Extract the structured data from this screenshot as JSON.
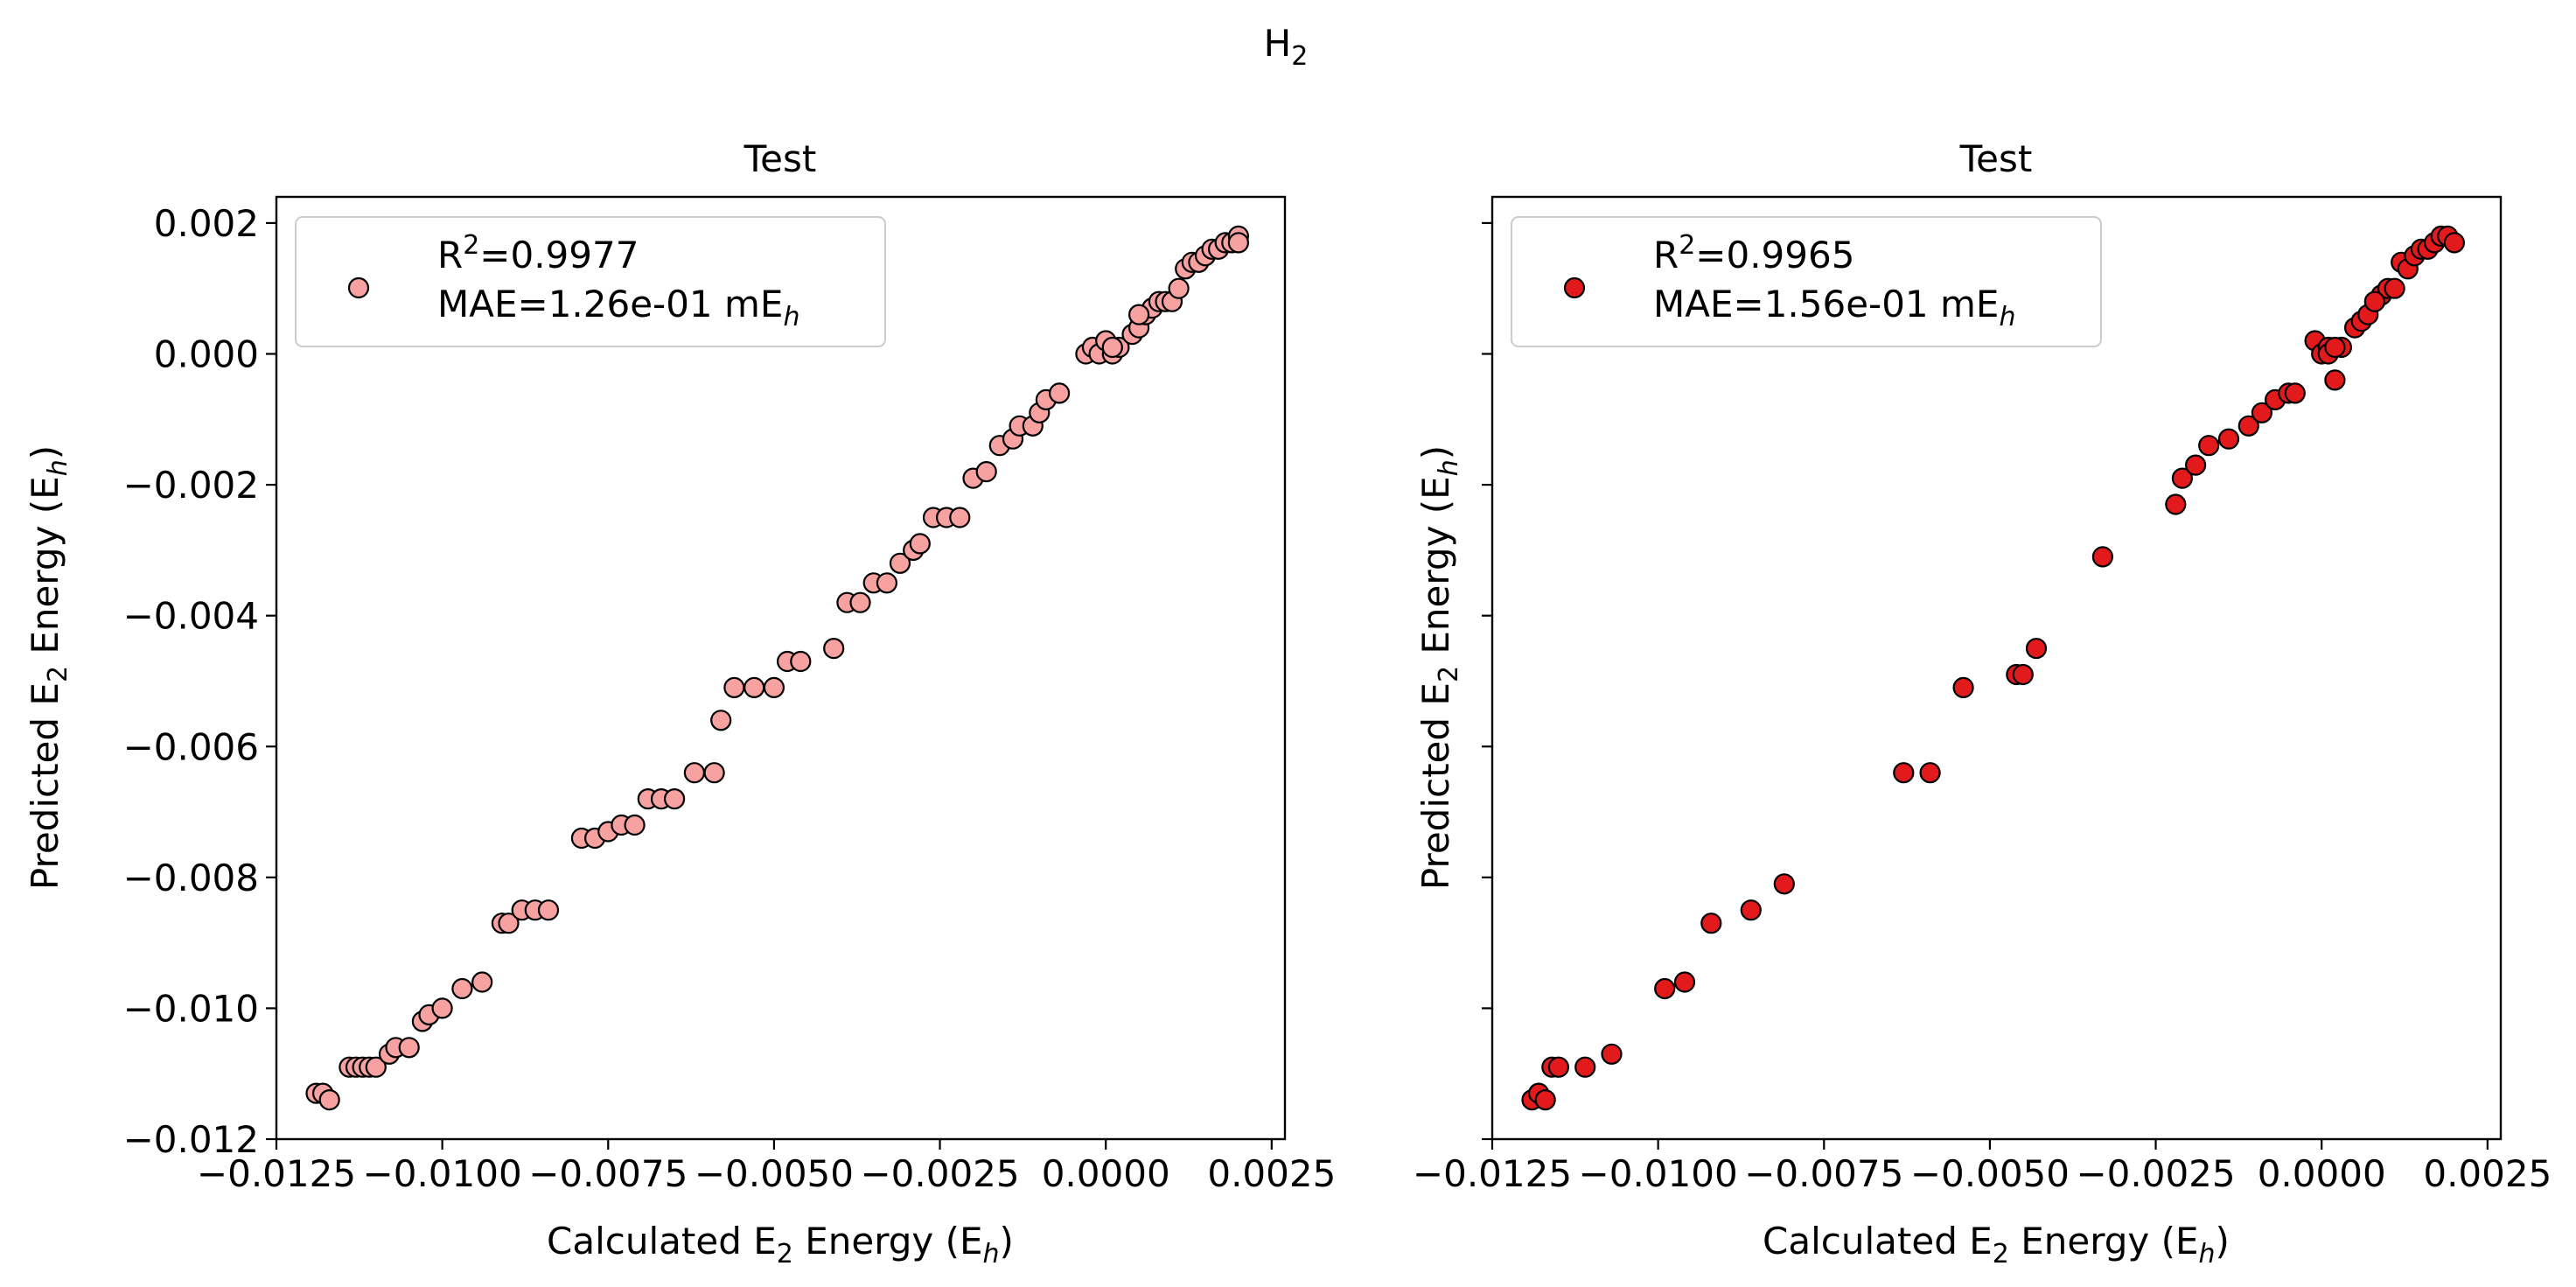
{
  "figure": {
    "suptitle": "H",
    "suptitle_sub": "2"
  },
  "chart_data": [
    {
      "type": "scatter",
      "title": "Test",
      "xlabel": {
        "pre": "Calculated E",
        "sub1": "2",
        "mid": " Energy (E",
        "sub2": "h",
        "post": ")"
      },
      "ylabel": {
        "pre": "Predicted E",
        "sub1": "2",
        "mid": " Energy (E",
        "sub2": "h",
        "post": ")"
      },
      "xlim": [
        -0.0125,
        0.0027
      ],
      "ylim": [
        -0.012,
        0.0024
      ],
      "xticks": [
        -0.0125,
        -0.01,
        -0.0075,
        -0.005,
        -0.0025,
        0.0,
        0.0025
      ],
      "xtick_labels": [
        "−0.0125",
        "−0.0100",
        "−0.0075",
        "−0.0050",
        "−0.0025",
        "0.0000",
        "0.0025"
      ],
      "yticks": [
        -0.012,
        -0.01,
        -0.008,
        -0.006,
        -0.004,
        -0.002,
        0.0,
        0.002
      ],
      "ytick_labels": [
        "−0.012",
        "−0.010",
        "−0.008",
        "−0.006",
        "−0.004",
        "−0.002",
        "0.000",
        "0.002"
      ],
      "show_ytick_labels": true,
      "grid": false,
      "legend": {
        "placement": "upper-left",
        "r2_label": "R",
        "r2_sup": "2",
        "r2_value": "=0.9977",
        "mae_label": "MAE=1.26e-01 mE",
        "mae_sub": "h"
      },
      "colors": {
        "marker_fill": "#f7a1a1",
        "marker_edge": "#000000"
      },
      "x": [
        -0.0119,
        -0.0118,
        -0.0117,
        -0.0114,
        -0.0113,
        -0.0112,
        -0.0111,
        -0.011,
        -0.0108,
        -0.0107,
        -0.0105,
        -0.0103,
        -0.0102,
        -0.01,
        -0.0097,
        -0.0094,
        -0.0091,
        -0.009,
        -0.0088,
        -0.0086,
        -0.0084,
        -0.0079,
        -0.0077,
        -0.0075,
        -0.0073,
        -0.0071,
        -0.0069,
        -0.0067,
        -0.0065,
        -0.0062,
        -0.0059,
        -0.0058,
        -0.0056,
        -0.0053,
        -0.005,
        -0.0048,
        -0.0046,
        -0.0041,
        -0.0039,
        -0.0037,
        -0.0035,
        -0.0033,
        -0.0031,
        -0.0029,
        -0.0028,
        -0.0026,
        -0.0024,
        -0.0022,
        -0.002,
        -0.0018,
        -0.0016,
        -0.0014,
        -0.0013,
        -0.0011,
        -0.001,
        -0.0009,
        -0.0007,
        -0.0003,
        -0.0002,
        -0.0001,
        0.0,
        0.0001,
        0.0002,
        0.0004,
        0.0005,
        0.0006,
        0.0007,
        0.0008,
        0.0009,
        0.001,
        0.0011,
        0.0012,
        0.0013,
        0.0014,
        0.0015,
        0.0016,
        0.0017,
        0.0018,
        0.0019,
        0.002,
        0.002,
        0.0001,
        0.0005
      ],
      "y": [
        -0.0113,
        -0.0113,
        -0.0114,
        -0.0109,
        -0.0109,
        -0.0109,
        -0.0109,
        -0.0109,
        -0.0107,
        -0.0106,
        -0.0106,
        -0.0102,
        -0.0101,
        -0.01,
        -0.0097,
        -0.0096,
        -0.0087,
        -0.0087,
        -0.0085,
        -0.0085,
        -0.0085,
        -0.0074,
        -0.0074,
        -0.0073,
        -0.0072,
        -0.0072,
        -0.0068,
        -0.0068,
        -0.0068,
        -0.0064,
        -0.0064,
        -0.0056,
        -0.0051,
        -0.0051,
        -0.0051,
        -0.0047,
        -0.0047,
        -0.0045,
        -0.0038,
        -0.0038,
        -0.0035,
        -0.0035,
        -0.0032,
        -0.003,
        -0.0029,
        -0.0025,
        -0.0025,
        -0.0025,
        -0.0019,
        -0.0018,
        -0.0014,
        -0.0013,
        -0.0011,
        -0.0011,
        -0.0009,
        -0.0007,
        -0.0006,
        0.0,
        0.0001,
        0.0,
        0.0002,
        0.0,
        0.0001,
        0.0003,
        0.0004,
        0.0006,
        0.0007,
        0.0008,
        0.0008,
        0.0008,
        0.001,
        0.0013,
        0.0014,
        0.0014,
        0.0015,
        0.0016,
        0.0016,
        0.0017,
        0.0017,
        0.0018,
        0.0017,
        0.0001,
        0.0006
      ]
    },
    {
      "type": "scatter",
      "title": "Test",
      "xlabel": {
        "pre": "Calculated E",
        "sub1": "2",
        "mid": " Energy (E",
        "sub2": "h",
        "post": ")"
      },
      "ylabel": {
        "pre": "Predicted E",
        "sub1": "2",
        "mid": " Energy (E",
        "sub2": "h",
        "post": ")"
      },
      "xlim": [
        -0.0125,
        0.0027
      ],
      "ylim": [
        -0.012,
        0.0024
      ],
      "xticks": [
        -0.0125,
        -0.01,
        -0.0075,
        -0.005,
        -0.0025,
        0.0,
        0.0025
      ],
      "xtick_labels": [
        "−0.0125",
        "−0.0100",
        "−0.0075",
        "−0.0050",
        "−0.0025",
        "0.0000",
        "0.0025"
      ],
      "yticks": [
        -0.012,
        -0.01,
        -0.008,
        -0.006,
        -0.004,
        -0.002,
        0.0,
        0.002
      ],
      "ytick_labels": [],
      "show_ytick_labels": false,
      "grid": false,
      "legend": {
        "placement": "upper-left",
        "r2_label": "R",
        "r2_sup": "2",
        "r2_value": "=0.9965",
        "mae_label": "MAE=1.56e-01 mE",
        "mae_sub": "h"
      },
      "colors": {
        "marker_fill": "#e31a1c",
        "marker_edge": "#000000"
      },
      "x": [
        -0.0119,
        -0.0118,
        -0.0117,
        -0.0116,
        -0.0115,
        -0.0111,
        -0.0107,
        -0.0099,
        -0.0096,
        -0.0092,
        -0.0086,
        -0.0081,
        -0.0063,
        -0.0059,
        -0.0054,
        -0.0046,
        -0.0045,
        -0.0043,
        -0.0033,
        -0.0022,
        -0.0021,
        -0.0019,
        -0.0017,
        -0.0014,
        -0.0011,
        -0.0009,
        -0.0007,
        -0.0005,
        -0.0004,
        -0.0001,
        0.0,
        0.0001,
        0.0002,
        0.0003,
        0.0005,
        0.0006,
        0.0007,
        0.0008,
        0.0009,
        0.001,
        0.0011,
        0.0012,
        0.0013,
        0.0014,
        0.0015,
        0.0016,
        0.0017,
        0.0018,
        0.0019,
        0.002,
        0.0001,
        0.0002,
        0.0008
      ],
      "y": [
        -0.0114,
        -0.0113,
        -0.0114,
        -0.0109,
        -0.0109,
        -0.0109,
        -0.0107,
        -0.0097,
        -0.0096,
        -0.0087,
        -0.0085,
        -0.0081,
        -0.0064,
        -0.0064,
        -0.0051,
        -0.0049,
        -0.0049,
        -0.0045,
        -0.0031,
        -0.0023,
        -0.0019,
        -0.0017,
        -0.0014,
        -0.0013,
        -0.0011,
        -0.0009,
        -0.0007,
        -0.0006,
        -0.0006,
        0.0002,
        0.0,
        0.0001,
        -0.0004,
        0.0001,
        0.0004,
        0.0005,
        0.0006,
        0.0008,
        0.0009,
        0.001,
        0.001,
        0.0014,
        0.0013,
        0.0015,
        0.0016,
        0.0016,
        0.0017,
        0.0018,
        0.0018,
        0.0017,
        0.0,
        0.0001,
        0.0008
      ]
    }
  ]
}
